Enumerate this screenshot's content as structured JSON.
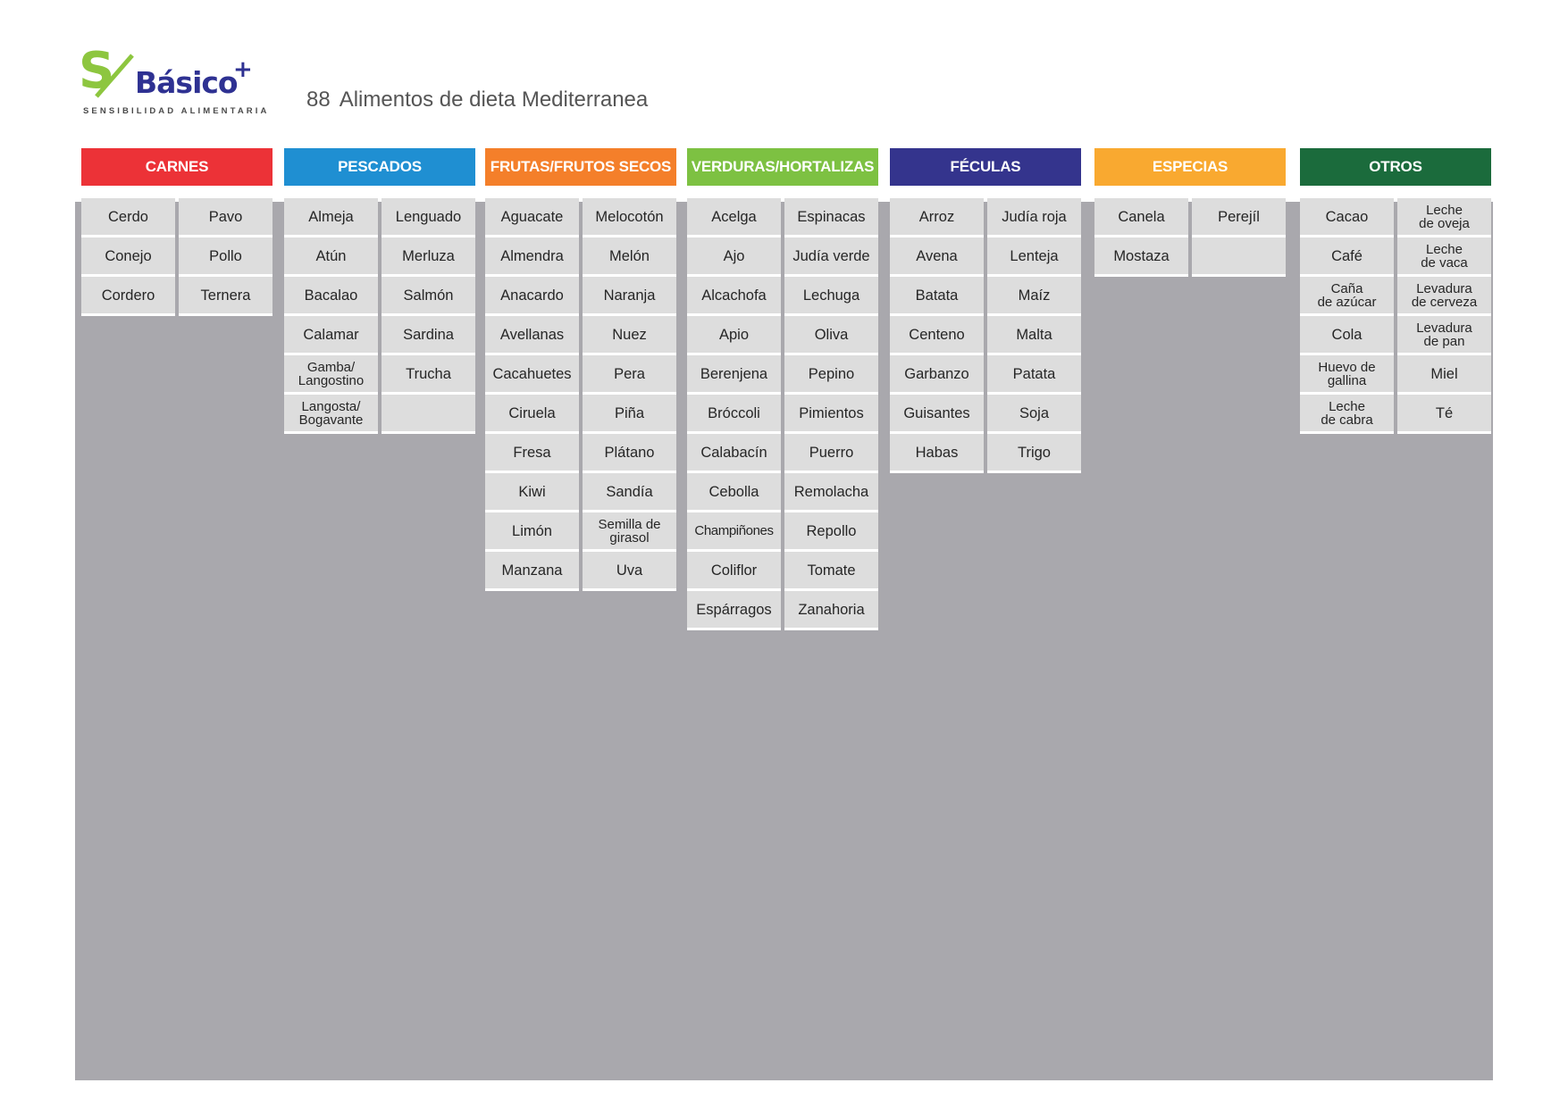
{
  "brand": {
    "logo_mark": "S",
    "logo_word": "Básico",
    "logo_plus": "+",
    "tagline": "SENSIBILIDAD ALIMENTARIA",
    "colors": {
      "green": "#8dc63f",
      "navy": "#2e3192",
      "red": "#e31e24"
    }
  },
  "title": {
    "number": "88",
    "text": "Alimentos de dieta Mediterranea"
  },
  "colors": {
    "panel": "#a9a8ad",
    "cell": "#dddddd"
  },
  "categories": [
    {
      "name": "CARNES",
      "color": "#ec3237",
      "items": [
        "Cerdo",
        "Pavo",
        "Conejo",
        "Pollo",
        "Cordero",
        "Ternera"
      ]
    },
    {
      "name": "PESCADOS",
      "color": "#1f8fd2",
      "items": [
        "Almeja",
        "Lenguado",
        "Atún",
        "Merluza",
        "Bacalao",
        "Salmón",
        "Calamar",
        "Sardina",
        "Gamba/\nLangostino",
        "Trucha",
        "Langosta/\nBogavante",
        ""
      ]
    },
    {
      "name": "FRUTAS/FRUTOS SECOS",
      "color": "#f47f2a",
      "items": [
        "Aguacate",
        "Melocotón",
        "Almendra",
        "Melón",
        "Anacardo",
        "Naranja",
        "Avellanas",
        "Nuez",
        "Cacahuetes",
        "Pera",
        "Ciruela",
        "Piña",
        "Fresa",
        "Plátano",
        "Kiwi",
        "Sandía",
        "Limón",
        "Semilla de\ngirasol",
        "Manzana",
        "Uva"
      ]
    },
    {
      "name": "VERDURAS/HORTALIZAS",
      "color": "#7dc142",
      "items": [
        "Acelga",
        "Espinacas",
        "Ajo",
        "Judía verde",
        "Alcachofa",
        "Lechuga",
        "Apio",
        "Oliva",
        "Berenjena",
        "Pepino",
        "Bróccoli",
        "Pimientos",
        "Calabacín",
        "Puerro",
        "Cebolla",
        "Remolacha",
        "Champiñones",
        "Repollo",
        "Coliflor",
        "Tomate",
        "Espárragos",
        "Zanahoria"
      ]
    },
    {
      "name": "FÉCULAS",
      "color": "#34348d",
      "items": [
        "Arroz",
        "Judía roja",
        "Avena",
        "Lenteja",
        "Batata",
        "Maíz",
        "Centeno",
        "Malta",
        "Garbanzo",
        "Patata",
        "Guisantes",
        "Soja",
        "Habas",
        "Trigo"
      ]
    },
    {
      "name": "ESPECIAS",
      "color": "#f9a930",
      "items": [
        "Canela",
        "Perejíl",
        "Mostaza",
        ""
      ]
    },
    {
      "name": "OTROS",
      "color": "#1b6b3c",
      "items": [
        "Cacao",
        "Leche\nde oveja",
        "Café",
        "Leche\nde vaca",
        "Caña\nde azúcar",
        "Levadura\nde cerveza",
        "Cola",
        "Levadura\nde pan",
        "Huevo de\ngallina",
        "Miel",
        "Leche\nde cabra",
        "Té"
      ]
    }
  ]
}
